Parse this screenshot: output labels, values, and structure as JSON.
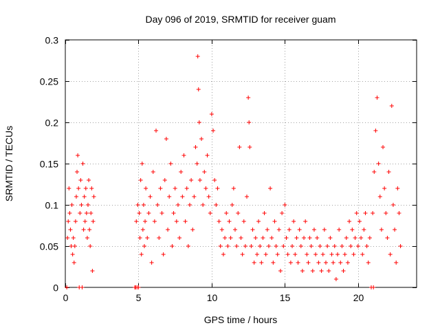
{
  "chart_data": {
    "type": "scatter",
    "title": "Day 096 of 2019, SRMTID for receiver guam",
    "xlabel": "GPS time / hours",
    "ylabel": "SRMTID / TECUs",
    "xlim": [
      0,
      24
    ],
    "ylim": [
      0,
      0.3
    ],
    "xticks": [
      0,
      5,
      10,
      15,
      20
    ],
    "xtick_labels": [
      "0",
      "5",
      "10",
      "15",
      "20"
    ],
    "yticks": [
      0,
      0.05,
      0.1,
      0.15,
      0.2,
      0.25,
      0.3
    ],
    "ytick_labels": [
      "0",
      "0.05",
      "0.1",
      "0.15",
      "0.2",
      "0.25",
      "0.3"
    ],
    "grid": true,
    "marker": "+",
    "color": "#ff0000",
    "series": [
      {
        "name": "SRMTID",
        "points": [
          [
            0.1,
            0.0
          ],
          [
            0.15,
            0.06
          ],
          [
            0.2,
            0.08
          ],
          [
            0.25,
            0.12
          ],
          [
            0.3,
            0.09
          ],
          [
            0.35,
            0.07
          ],
          [
            0.4,
            0.05
          ],
          [
            0.45,
            0.1
          ],
          [
            0.5,
            0.04
          ],
          [
            0.55,
            0.06
          ],
          [
            0.6,
            0.03
          ],
          [
            0.65,
            0.05
          ],
          [
            0.7,
            0.08
          ],
          [
            0.75,
            0.11
          ],
          [
            0.8,
            0.14
          ],
          [
            0.85,
            0.16
          ],
          [
            0.9,
            0.12
          ],
          [
            0.95,
            0.0
          ],
          [
            1.0,
            0.09
          ],
          [
            1.05,
            0.13
          ],
          [
            1.1,
            0.1
          ],
          [
            1.15,
            0.0
          ],
          [
            1.2,
            0.15
          ],
          [
            1.25,
            0.07
          ],
          [
            1.3,
            0.11
          ],
          [
            1.35,
            0.08
          ],
          [
            1.4,
            0.12
          ],
          [
            1.45,
            0.09
          ],
          [
            1.5,
            0.06
          ],
          [
            1.55,
            0.1
          ],
          [
            1.6,
            0.13
          ],
          [
            1.65,
            0.07
          ],
          [
            1.7,
            0.05
          ],
          [
            1.75,
            0.09
          ],
          [
            1.8,
            0.12
          ],
          [
            1.85,
            0.02
          ],
          [
            1.9,
            0.08
          ],
          [
            1.95,
            0.11
          ],
          [
            4.75,
            0.0
          ],
          [
            4.8,
            0.0
          ],
          [
            4.85,
            0.08
          ],
          [
            4.9,
            0.0
          ],
          [
            4.95,
            0.1
          ],
          [
            5.0,
            0.0
          ],
          [
            5.05,
            0.09
          ],
          [
            5.1,
            0.06
          ],
          [
            5.15,
            0.13
          ],
          [
            5.2,
            0.04
          ],
          [
            5.25,
            0.15
          ],
          [
            5.3,
            0.07
          ],
          [
            5.35,
            0.1
          ],
          [
            5.4,
            0.05
          ],
          [
            5.45,
            0.08
          ],
          [
            5.5,
            0.12
          ],
          [
            5.6,
            0.06
          ],
          [
            5.7,
            0.09
          ],
          [
            5.8,
            0.11
          ],
          [
            5.9,
            0.03
          ],
          [
            6.0,
            0.14
          ],
          [
            6.1,
            0.08
          ],
          [
            6.2,
            0.19
          ],
          [
            6.3,
            0.1
          ],
          [
            6.4,
            0.06
          ],
          [
            6.5,
            0.12
          ],
          [
            6.6,
            0.09
          ],
          [
            6.7,
            0.04
          ],
          [
            6.8,
            0.13
          ],
          [
            6.9,
            0.18
          ],
          [
            7.0,
            0.07
          ],
          [
            7.1,
            0.11
          ],
          [
            7.2,
            0.15
          ],
          [
            7.3,
            0.05
          ],
          [
            7.4,
            0.09
          ],
          [
            7.5,
            0.12
          ],
          [
            7.6,
            0.08
          ],
          [
            7.7,
            0.1
          ],
          [
            7.8,
            0.06
          ],
          [
            7.9,
            0.14
          ],
          [
            8.0,
            0.11
          ],
          [
            8.1,
            0.16
          ],
          [
            8.2,
            0.08
          ],
          [
            8.3,
            0.12
          ],
          [
            8.4,
            0.05
          ],
          [
            8.5,
            0.1
          ],
          [
            8.6,
            0.13
          ],
          [
            8.7,
            0.07
          ],
          [
            8.8,
            0.11
          ],
          [
            8.9,
            0.17
          ],
          [
            9.0,
            0.15
          ],
          [
            9.05,
            0.28
          ],
          [
            9.1,
            0.24
          ],
          [
            9.15,
            0.2
          ],
          [
            9.2,
            0.13
          ],
          [
            9.3,
            0.18
          ],
          [
            9.4,
            0.1
          ],
          [
            9.5,
            0.14
          ],
          [
            9.6,
            0.12
          ],
          [
            9.7,
            0.16
          ],
          [
            9.8,
            0.11
          ],
          [
            9.9,
            0.09
          ],
          [
            10.0,
            0.21
          ],
          [
            10.1,
            0.19
          ],
          [
            10.2,
            0.13
          ],
          [
            10.3,
            0.1
          ],
          [
            10.4,
            0.12
          ],
          [
            10.5,
            0.08
          ],
          [
            10.6,
            0.05
          ],
          [
            10.7,
            0.07
          ],
          [
            10.8,
            0.04
          ],
          [
            10.9,
            0.06
          ],
          [
            11.0,
            0.09
          ],
          [
            11.1,
            0.05
          ],
          [
            11.2,
            0.08
          ],
          [
            11.3,
            0.06
          ],
          [
            11.4,
            0.1
          ],
          [
            11.5,
            0.12
          ],
          [
            11.6,
            0.07
          ],
          [
            11.7,
            0.05
          ],
          [
            11.8,
            0.09
          ],
          [
            11.9,
            0.17
          ],
          [
            12.0,
            0.06
          ],
          [
            12.1,
            0.04
          ],
          [
            12.2,
            0.08
          ],
          [
            12.3,
            0.05
          ],
          [
            12.4,
            0.11
          ],
          [
            12.5,
            0.23
          ],
          [
            12.55,
            0.2
          ],
          [
            12.6,
            0.17
          ],
          [
            12.7,
            0.05
          ],
          [
            12.8,
            0.07
          ],
          [
            12.9,
            0.03
          ],
          [
            13.0,
            0.06
          ],
          [
            13.1,
            0.04
          ],
          [
            13.2,
            0.08
          ],
          [
            13.3,
            0.05
          ],
          [
            13.4,
            0.03
          ],
          [
            13.5,
            0.06
          ],
          [
            13.6,
            0.09
          ],
          [
            13.7,
            0.04
          ],
          [
            13.8,
            0.07
          ],
          [
            13.9,
            0.05
          ],
          [
            14.0,
            0.12
          ],
          [
            14.1,
            0.06
          ],
          [
            14.2,
            0.03
          ],
          [
            14.3,
            0.08
          ],
          [
            14.4,
            0.05
          ],
          [
            14.5,
            0.04
          ],
          [
            14.6,
            0.07
          ],
          [
            14.7,
            0.02
          ],
          [
            14.8,
            0.09
          ],
          [
            14.9,
            0.05
          ],
          [
            15.0,
            0.1
          ],
          [
            15.1,
            0.06
          ],
          [
            15.2,
            0.04
          ],
          [
            15.3,
            0.07
          ],
          [
            15.4,
            0.03
          ],
          [
            15.5,
            0.05
          ],
          [
            15.6,
            0.08
          ],
          [
            15.7,
            0.04
          ],
          [
            15.8,
            0.06
          ],
          [
            15.9,
            0.03
          ],
          [
            16.0,
            0.07
          ],
          [
            16.1,
            0.05
          ],
          [
            16.2,
            0.02
          ],
          [
            16.3,
            0.06
          ],
          [
            16.4,
            0.08
          ],
          [
            16.5,
            0.04
          ],
          [
            16.6,
            0.03
          ],
          [
            16.7,
            0.06
          ],
          [
            16.8,
            0.05
          ],
          [
            16.9,
            0.02
          ],
          [
            17.0,
            0.07
          ],
          [
            17.1,
            0.04
          ],
          [
            17.2,
            0.06
          ],
          [
            17.3,
            0.03
          ],
          [
            17.4,
            0.05
          ],
          [
            17.5,
            0.02
          ],
          [
            17.6,
            0.04
          ],
          [
            17.7,
            0.07
          ],
          [
            17.8,
            0.03
          ],
          [
            17.9,
            0.05
          ],
          [
            18.0,
            0.02
          ],
          [
            18.1,
            0.06
          ],
          [
            18.2,
            0.04
          ],
          [
            18.3,
            0.03
          ],
          [
            18.4,
            0.05
          ],
          [
            18.5,
            0.01
          ],
          [
            18.6,
            0.04
          ],
          [
            18.7,
            0.07
          ],
          [
            18.8,
            0.03
          ],
          [
            18.9,
            0.05
          ],
          [
            19.0,
            0.02
          ],
          [
            19.1,
            0.04
          ],
          [
            19.2,
            0.06
          ],
          [
            19.3,
            0.03
          ],
          [
            19.4,
            0.08
          ],
          [
            19.5,
            0.05
          ],
          [
            19.6,
            0.07
          ],
          [
            19.7,
            0.04
          ],
          [
            19.8,
            0.06
          ],
          [
            19.9,
            0.09
          ],
          [
            20.0,
            0.05
          ],
          [
            20.1,
            0.08
          ],
          [
            20.2,
            0.06
          ],
          [
            20.3,
            0.04
          ],
          [
            20.4,
            0.07
          ],
          [
            20.5,
            0.09
          ],
          [
            20.6,
            0.05
          ],
          [
            20.7,
            0.03
          ],
          [
            20.8,
            0.06
          ],
          [
            20.9,
            0.0
          ],
          [
            21.0,
            0.09
          ],
          [
            21.05,
            0.0
          ],
          [
            21.1,
            0.14
          ],
          [
            21.2,
            0.19
          ],
          [
            21.3,
            0.23
          ],
          [
            21.4,
            0.15
          ],
          [
            21.5,
            0.11
          ],
          [
            21.6,
            0.07
          ],
          [
            21.7,
            0.17
          ],
          [
            21.8,
            0.12
          ],
          [
            21.9,
            0.09
          ],
          [
            22.0,
            0.06
          ],
          [
            22.1,
            0.14
          ],
          [
            22.2,
            0.04
          ],
          [
            22.3,
            0.22
          ],
          [
            22.4,
            0.1
          ],
          [
            22.5,
            0.07
          ],
          [
            22.6,
            0.03
          ],
          [
            22.7,
            0.12
          ],
          [
            22.8,
            0.09
          ],
          [
            22.9,
            0.05
          ]
        ]
      }
    ]
  }
}
